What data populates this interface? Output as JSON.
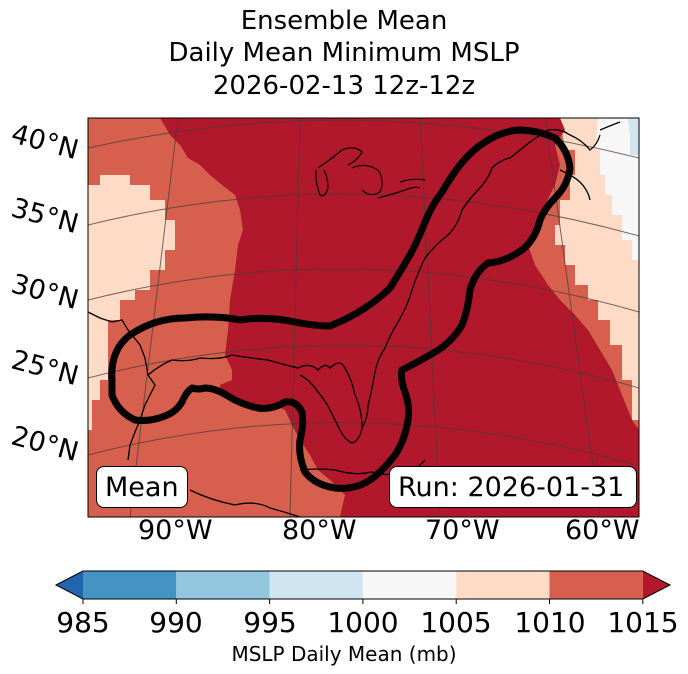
{
  "title": {
    "line1": "Ensemble Mean",
    "line2": "Daily Mean Minimum MSLP",
    "line3": "2026-02-13 12z-12z"
  },
  "map": {
    "lat_labels": [
      "40°N",
      "35°N",
      "30°N",
      "25°N",
      "20°N"
    ],
    "lon_labels": [
      "90°W",
      "80°W",
      "70°W",
      "60°W"
    ],
    "mean_label": "Mean",
    "run_label": "Run: 2026-01-31"
  },
  "colorbar": {
    "ticks": [
      "985",
      "990",
      "995",
      "1000",
      "1005",
      "1010",
      "1015"
    ],
    "label": "MSLP Daily Mean (mb)",
    "bin_colors": [
      "#2166ac",
      "#4393c3",
      "#92c5de",
      "#d1e5f0",
      "#f7f7f7",
      "#fddbc7",
      "#d6604d",
      "#b2182b"
    ]
  },
  "field_colors": {
    "1015_plus": "#b2182b",
    "1010_1015": "#d6604d",
    "1005_1010": "#fddbc7",
    "1000_1005": "#f7f7f7",
    "995_1000": "#d1e5f0"
  }
}
